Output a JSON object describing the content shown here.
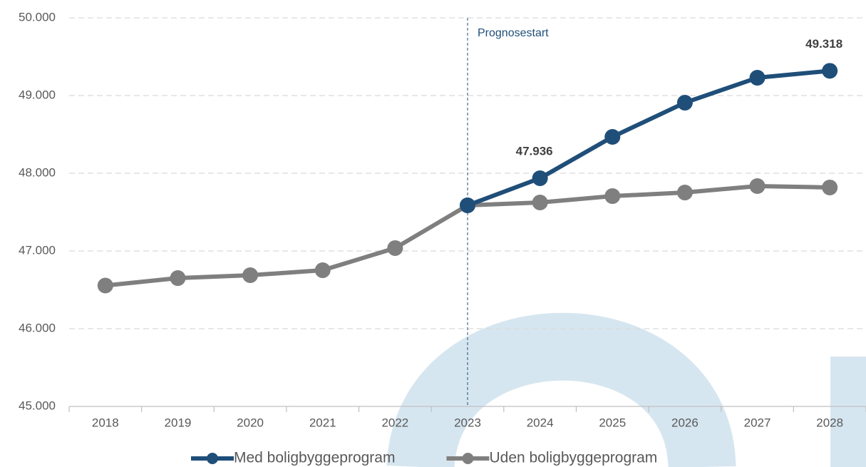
{
  "chart_data": {
    "type": "line",
    "categories": [
      "2018",
      "2019",
      "2020",
      "2021",
      "2022",
      "2023",
      "2024",
      "2025",
      "2026",
      "2027",
      "2028"
    ],
    "series": [
      {
        "name": "Med boligbyggeprogram",
        "color": "#1f4e79",
        "values": [
          null,
          null,
          null,
          null,
          null,
          47587,
          47936,
          48468,
          48908,
          49229,
          49318
        ],
        "value_labels": [
          null,
          null,
          null,
          null,
          null,
          null,
          "47.936",
          null,
          null,
          null,
          "49.318"
        ]
      },
      {
        "name": "Uden boligbyggeprogram",
        "color": "#7f7f7f",
        "values": [
          46555,
          46651,
          46688,
          46752,
          47037,
          47587,
          47624,
          47706,
          47752,
          47835,
          47817
        ]
      }
    ],
    "ylim": [
      45000,
      50000
    ],
    "yticks": [
      {
        "value": 45000,
        "label": "45.000"
      },
      {
        "value": 46000,
        "label": "46.000"
      },
      {
        "value": 47000,
        "label": "47.000"
      },
      {
        "value": 48000,
        "label": "48.000"
      },
      {
        "value": 49000,
        "label": "49.000"
      },
      {
        "value": 50000,
        "label": "50.000"
      }
    ],
    "grid": true,
    "annotation": {
      "text": "Prognosestart",
      "x": "2023"
    },
    "legend": "bottom"
  }
}
